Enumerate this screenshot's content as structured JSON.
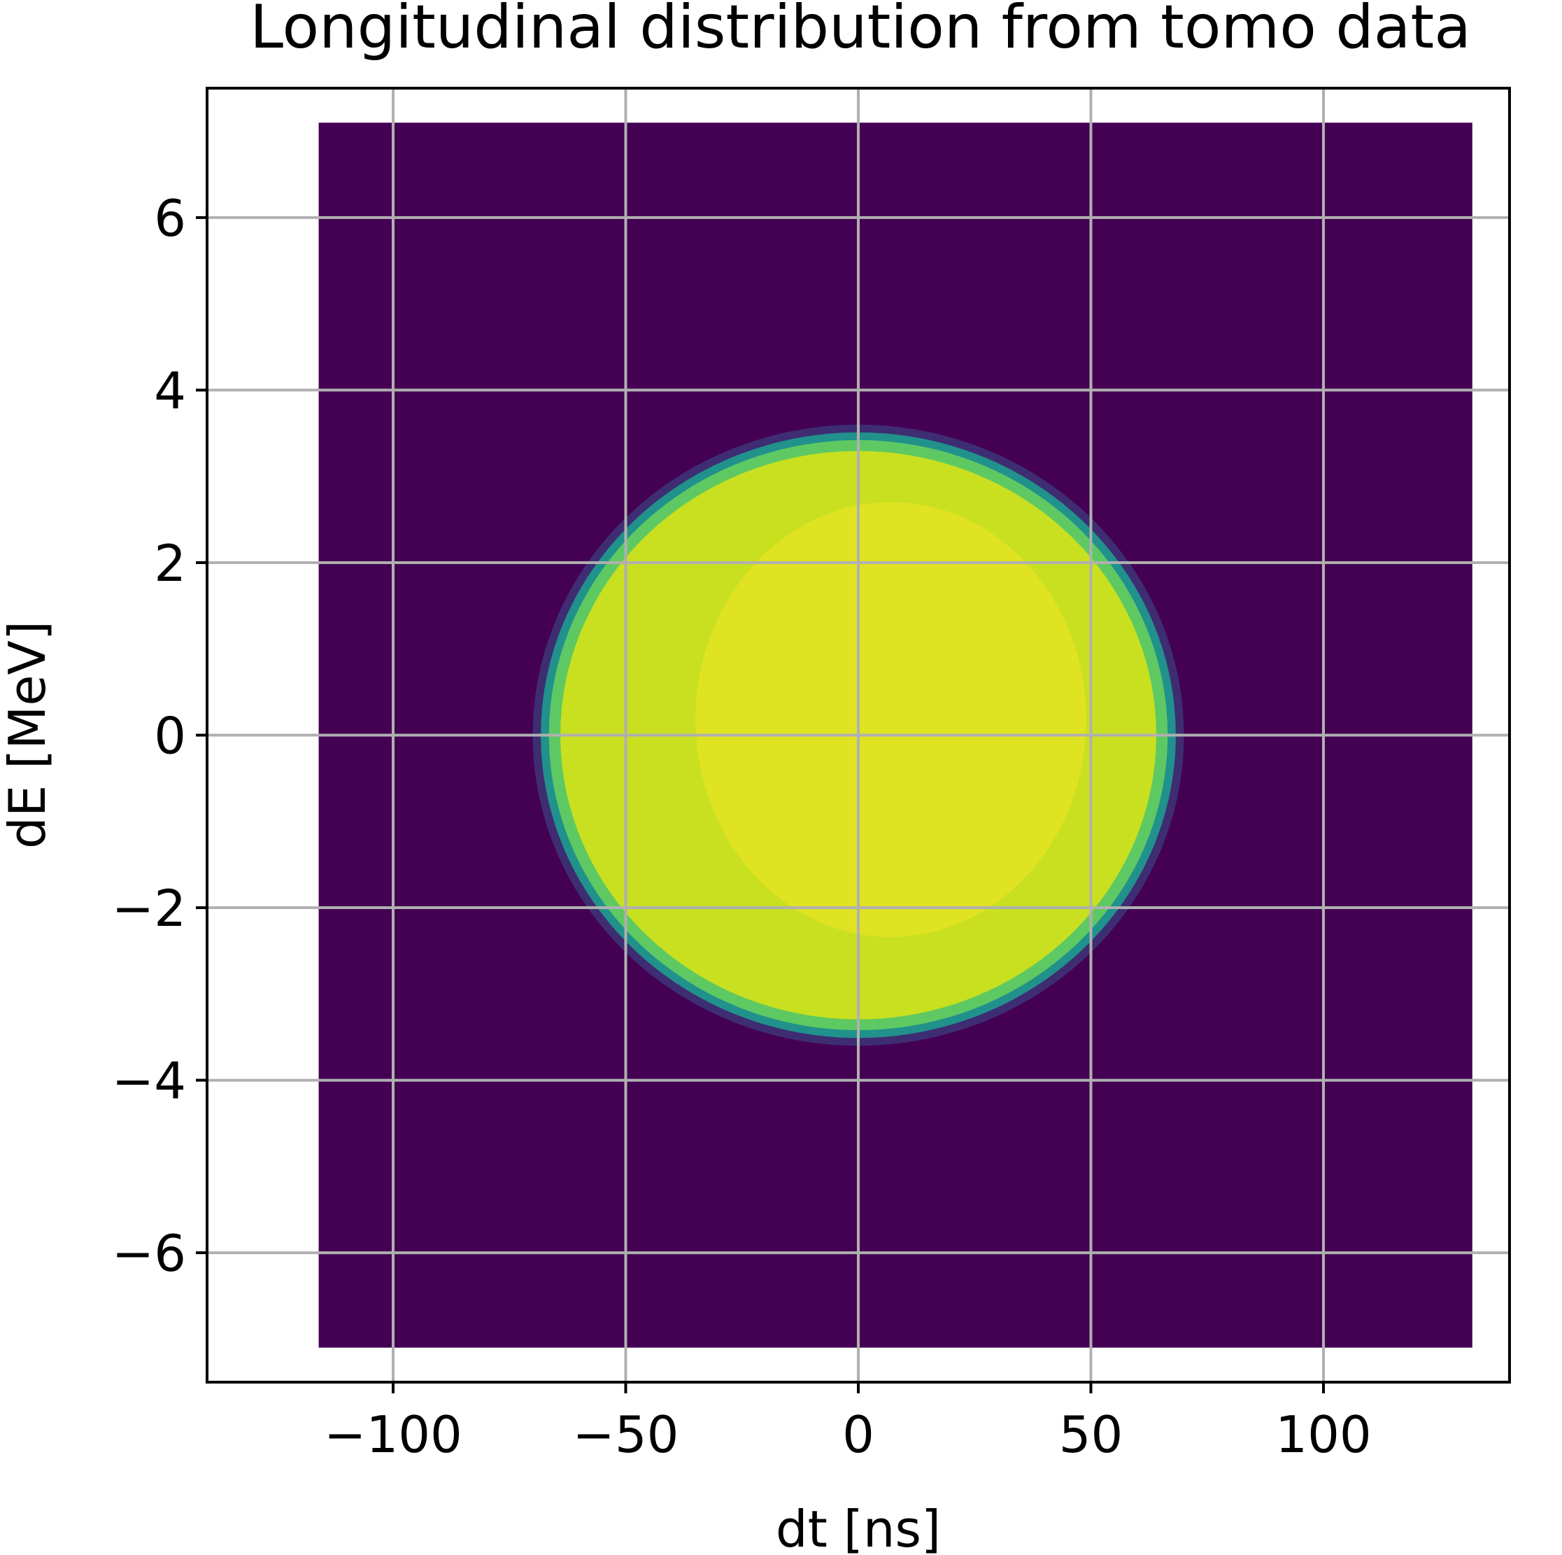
{
  "chart_data": {
    "type": "heatmap",
    "title": "Longitudinal distribution from tomo data",
    "xlabel": "dt [ns]",
    "ylabel": "dE [MeV]",
    "xlim": [
      -140,
      140
    ],
    "ylim": [
      -7.5,
      7.5
    ],
    "grid": true,
    "colormap": "viridis",
    "x_ticks": [
      -100,
      -50,
      0,
      50,
      100
    ],
    "y_ticks": [
      -6,
      -4,
      -2,
      0,
      2,
      4,
      6
    ],
    "x_tick_labels": [
      "−100",
      "−50",
      "0",
      "50",
      "100"
    ],
    "y_tick_labels": [
      "−6",
      "−4",
      "−2",
      "0",
      "2",
      "4",
      "6"
    ],
    "image_extent": {
      "x": [
        -116,
        132
      ],
      "y": [
        -7.1,
        7.1
      ]
    },
    "distribution": {
      "shape": "disk",
      "center": {
        "dt": 0,
        "dE": 0
      },
      "radius_dt": 70,
      "radius_dE": 3.6,
      "background_value": 0,
      "peak_value": 1
    }
  },
  "colors": {
    "background": "#440154",
    "low_edge": "#3b528b",
    "mid_edge": "#21918c",
    "rim": "#5ec962",
    "body": "#c8e020",
    "peak": "#fde725",
    "grid": "#b0b0b0",
    "axes": "#000000"
  }
}
